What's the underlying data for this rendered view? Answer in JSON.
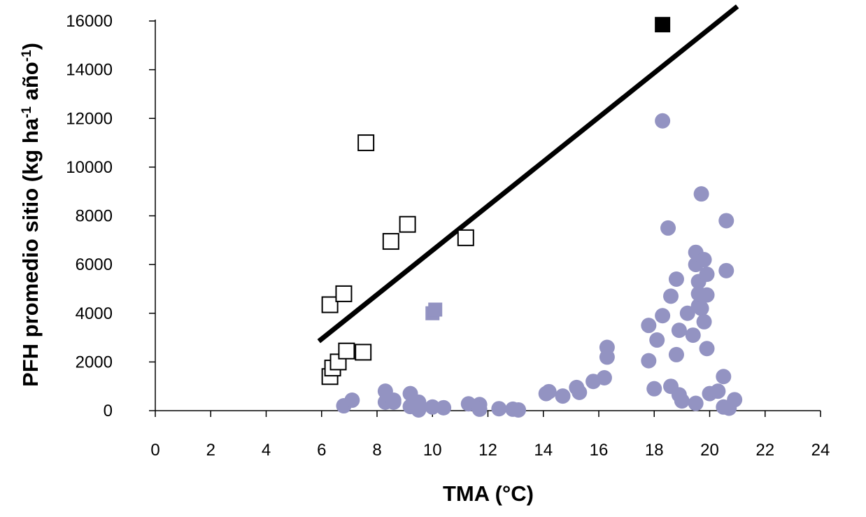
{
  "chart_data": {
    "type": "scatter",
    "xlabel": "TMA (°C)",
    "ylabel": {
      "main": "PFH promedio sitio (kg ha",
      "exp1": "-1",
      "mid": " año",
      "exp2": "-1",
      "end": ")"
    },
    "xlim": [
      0,
      24
    ],
    "ylim": [
      0,
      16000
    ],
    "xticks": [
      "0",
      "2",
      "4",
      "6",
      "8",
      "10",
      "12",
      "14",
      "16",
      "18",
      "20",
      "22",
      "24"
    ],
    "yticks": [
      "0",
      "2000",
      "4000",
      "6000",
      "8000",
      "10000",
      "12000",
      "14000",
      "16000"
    ],
    "grid": false,
    "legend": "none",
    "series": [
      {
        "marker": "circle",
        "color": "#9393c2",
        "points": [
          [
            6.8,
            200
          ],
          [
            7.1,
            430
          ],
          [
            8.3,
            800
          ],
          [
            8.3,
            350
          ],
          [
            8.6,
            430
          ],
          [
            8.6,
            350
          ],
          [
            9.2,
            700
          ],
          [
            9.2,
            170
          ],
          [
            9.5,
            350
          ],
          [
            9.5,
            30
          ],
          [
            10.0,
            150
          ],
          [
            10.4,
            120
          ],
          [
            11.3,
            280
          ],
          [
            11.7,
            250
          ],
          [
            11.7,
            60
          ],
          [
            12.4,
            80
          ],
          [
            12.9,
            60
          ],
          [
            13.1,
            30
          ],
          [
            14.1,
            700
          ],
          [
            14.2,
            780
          ],
          [
            14.7,
            600
          ],
          [
            15.2,
            950
          ],
          [
            15.3,
            750
          ],
          [
            15.8,
            1200
          ],
          [
            16.2,
            1350
          ],
          [
            16.3,
            2200
          ],
          [
            16.3,
            2600
          ],
          [
            17.8,
            3500
          ],
          [
            17.8,
            2050
          ],
          [
            18.0,
            900
          ],
          [
            18.1,
            2900
          ],
          [
            18.3,
            3900
          ],
          [
            18.3,
            11900
          ],
          [
            18.5,
            7500
          ],
          [
            18.6,
            1000
          ],
          [
            18.6,
            4700
          ],
          [
            18.8,
            5400
          ],
          [
            18.8,
            2300
          ],
          [
            18.9,
            3300
          ],
          [
            18.9,
            650
          ],
          [
            19.0,
            400
          ],
          [
            19.2,
            4000
          ],
          [
            19.4,
            3100
          ],
          [
            19.5,
            6500
          ],
          [
            19.5,
            6000
          ],
          [
            19.5,
            300
          ],
          [
            19.6,
            4300
          ],
          [
            19.6,
            5300
          ],
          [
            19.6,
            4800
          ],
          [
            19.7,
            4200
          ],
          [
            19.7,
            8900
          ],
          [
            19.8,
            3650
          ],
          [
            19.8,
            6200
          ],
          [
            19.9,
            4750
          ],
          [
            19.9,
            5600
          ],
          [
            19.9,
            2550
          ],
          [
            20.0,
            700
          ],
          [
            20.3,
            800
          ],
          [
            20.5,
            150
          ],
          [
            20.5,
            1400
          ],
          [
            20.6,
            5750
          ],
          [
            20.6,
            7800
          ],
          [
            20.7,
            100
          ],
          [
            20.9,
            450
          ]
        ]
      },
      {
        "marker": "square-filled",
        "color": "#9393c2",
        "points": [
          [
            10.0,
            4000
          ],
          [
            10.1,
            4150
          ]
        ]
      },
      {
        "marker": "square-open",
        "color": "#000000",
        "points": [
          [
            6.3,
            1400
          ],
          [
            6.4,
            1750
          ],
          [
            6.6,
            2000
          ],
          [
            6.3,
            4350
          ],
          [
            6.8,
            4800
          ],
          [
            6.9,
            2450
          ],
          [
            7.5,
            2400
          ],
          [
            7.6,
            11000
          ],
          [
            8.5,
            6950
          ],
          [
            9.1,
            7650
          ],
          [
            11.2,
            7100
          ]
        ]
      },
      {
        "marker": "square-filled",
        "color": "#000000",
        "points": [
          [
            18.3,
            15850
          ]
        ]
      }
    ],
    "trendline": {
      "type": "linear",
      "color": "#000000",
      "points": [
        [
          5.9,
          2850
        ],
        [
          21.0,
          16600
        ]
      ]
    }
  }
}
